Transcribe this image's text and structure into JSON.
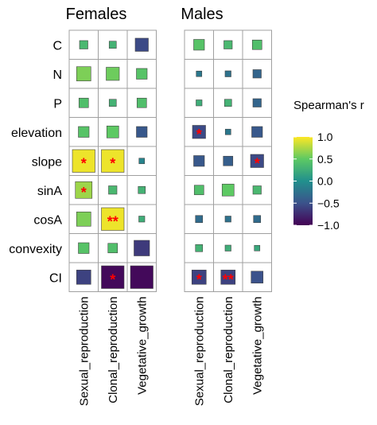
{
  "chart_data": {
    "type": "heatmap",
    "panels": [
      {
        "title": "Females",
        "columns": [
          "Sexual_reproduction",
          "Clonal_reproduction",
          "Vegetative_growth"
        ],
        "rows": [
          "C",
          "N",
          "P",
          "elevation",
          "slope",
          "sinA",
          "cosA",
          "convexity",
          "CI"
        ],
        "values": [
          [
            0.35,
            0.3,
            -0.55
          ],
          [
            0.6,
            0.55,
            0.45
          ],
          [
            0.4,
            0.3,
            0.4
          ],
          [
            0.45,
            0.5,
            -0.45
          ],
          [
            0.95,
            0.95,
            -0.1
          ],
          [
            0.7,
            0.35,
            0.3
          ],
          [
            0.6,
            0.95,
            0.25
          ],
          [
            0.45,
            0.4,
            -0.65
          ],
          [
            -0.6,
            -0.95,
            -0.95
          ]
        ],
        "significance": [
          [
            "",
            "",
            ""
          ],
          [
            "",
            "",
            ""
          ],
          [
            "",
            "",
            ""
          ],
          [
            "",
            "",
            ""
          ],
          [
            "*",
            "*",
            ""
          ],
          [
            "*",
            "",
            ""
          ],
          [
            "",
            "**",
            ""
          ],
          [
            "",
            "",
            ""
          ],
          [
            "",
            "*",
            ""
          ]
        ]
      },
      {
        "title": "Males",
        "columns": [
          "Sexual_reproduction",
          "Clonal_reproduction",
          "Vegetative_growth"
        ],
        "rows": [
          "C",
          "N",
          "P",
          "elevation",
          "slope",
          "sinA",
          "cosA",
          "convexity",
          "CI"
        ],
        "values": [
          [
            0.45,
            0.35,
            0.4
          ],
          [
            -0.2,
            -0.25,
            -0.35
          ],
          [
            0.25,
            0.3,
            -0.35
          ],
          [
            -0.55,
            -0.2,
            -0.45
          ],
          [
            -0.45,
            -0.4,
            -0.55
          ],
          [
            0.4,
            0.5,
            0.35
          ],
          [
            -0.3,
            -0.25,
            -0.3
          ],
          [
            0.3,
            0.25,
            0.2
          ],
          [
            -0.6,
            -0.6,
            -0.5
          ]
        ],
        "significance": [
          [
            "",
            "",
            ""
          ],
          [
            "",
            "",
            ""
          ],
          [
            "",
            "",
            ""
          ],
          [
            "*",
            "",
            ""
          ],
          [
            "",
            "",
            "*"
          ],
          [
            "",
            "",
            ""
          ],
          [
            "",
            "",
            ""
          ],
          [
            "",
            "",
            ""
          ],
          [
            "*",
            "**",
            ""
          ]
        ]
      }
    ],
    "legend": {
      "title": "Spearman's r",
      "ticks": [
        "1.0",
        "0.5",
        "0.0",
        "−0.5",
        "−1.0"
      ],
      "range": [
        -1,
        1
      ],
      "colormap": "viridis",
      "placement": "right"
    }
  },
  "colors": {
    "viridis_stops": [
      "#440154",
      "#3b528b",
      "#21908d",
      "#5dc963",
      "#fde725"
    ],
    "cell_border": "#a0a0a0",
    "star": "#ff0000"
  }
}
